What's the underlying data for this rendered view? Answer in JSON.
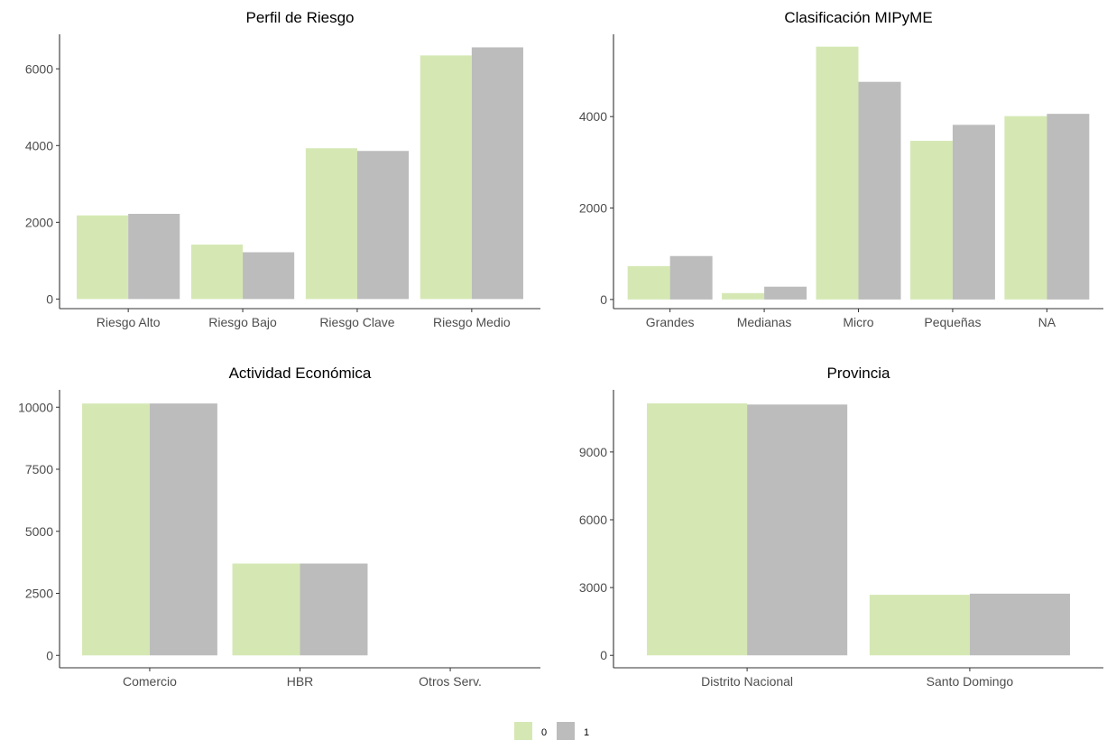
{
  "chart_data": [
    {
      "type": "bar",
      "title": "Perfil de Riesgo",
      "xlabel": "",
      "ylabel": "",
      "categories": [
        "Riesgo Alto",
        "Riesgo Bajo",
        "Riesgo Clave",
        "Riesgo Medio"
      ],
      "series": [
        {
          "name": "0",
          "values": [
            2180,
            1420,
            3930,
            6350
          ]
        },
        {
          "name": "1",
          "values": [
            2220,
            1220,
            3860,
            6560
          ]
        }
      ],
      "ylim": [
        -250,
        6900
      ],
      "yticks": [
        0,
        2000,
        4000,
        6000
      ],
      "grid": false,
      "legend": "bottom"
    },
    {
      "type": "bar",
      "title": "Clasificación MIPyME",
      "xlabel": "",
      "ylabel": "",
      "categories": [
        "Grandes",
        "Medianas",
        "Micro",
        "Pequeñas",
        "NA"
      ],
      "series": [
        {
          "name": "0",
          "values": [
            730,
            140,
            5530,
            3470,
            4010
          ]
        },
        {
          "name": "1",
          "values": [
            950,
            280,
            4760,
            3820,
            4060
          ]
        }
      ],
      "ylim": [
        -200,
        5800
      ],
      "yticks": [
        0,
        2000,
        4000
      ],
      "grid": false,
      "legend": "bottom"
    },
    {
      "type": "bar",
      "title": "Actividad Económica",
      "xlabel": "",
      "ylabel": "",
      "categories": [
        "Comercio",
        "HBR",
        "Otros Serv."
      ],
      "series": [
        {
          "name": "0",
          "values": [
            10150,
            3700,
            0
          ]
        },
        {
          "name": "1",
          "values": [
            10150,
            3700,
            0
          ]
        }
      ],
      "ylim": [
        -500,
        10700
      ],
      "yticks": [
        0,
        2500,
        5000,
        7500,
        10000
      ],
      "grid": false,
      "legend": "bottom"
    },
    {
      "type": "bar",
      "title": "Provincia",
      "xlabel": "",
      "ylabel": "",
      "categories": [
        "Distrito Nacional",
        "Santo Domingo"
      ],
      "series": [
        {
          "name": "0",
          "values": [
            11150,
            2680
          ]
        },
        {
          "name": "1",
          "values": [
            11100,
            2730
          ]
        }
      ],
      "ylim": [
        -550,
        11750
      ],
      "yticks": [
        0,
        3000,
        6000,
        9000
      ],
      "grid": false,
      "legend": "bottom"
    }
  ],
  "legend": {
    "items": [
      {
        "label": "0",
        "color": "#d5e8b4"
      },
      {
        "label": "1",
        "color": "#bcbcbc"
      }
    ]
  },
  "colors": {
    "series_0": "#d5e8b4",
    "series_1": "#bcbcbc",
    "axis": "#333333",
    "tick_text": "#4d4d4d"
  }
}
